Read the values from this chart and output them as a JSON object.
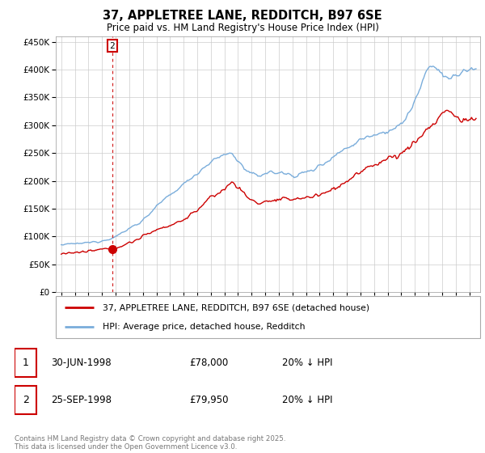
{
  "title": "37, APPLETREE LANE, REDDITCH, B97 6SE",
  "subtitle": "Price paid vs. HM Land Registry's House Price Index (HPI)",
  "ylim": [
    0,
    460000
  ],
  "yticks": [
    0,
    50000,
    100000,
    150000,
    200000,
    250000,
    300000,
    350000,
    400000,
    450000
  ],
  "line1_color": "#cc0000",
  "line2_color": "#7aaddb",
  "legend_line1": "37, APPLETREE LANE, REDDITCH, B97 6SE (detached house)",
  "legend_line2": "HPI: Average price, detached house, Redditch",
  "annotation1_label": "1",
  "annotation1_date": "30-JUN-1998",
  "annotation1_price": "£78,000",
  "annotation1_hpi": "20% ↓ HPI",
  "annotation2_label": "2",
  "annotation2_date": "25-SEP-1998",
  "annotation2_price": "£79,950",
  "annotation2_hpi": "20% ↓ HPI",
  "footer": "Contains HM Land Registry data © Crown copyright and database right 2025.\nThis data is licensed under the Open Government Licence v3.0.",
  "bg_color": "#ffffff",
  "plot_bg_color": "#ffffff",
  "grid_color": "#cccccc",
  "vline_x": 1998.75
}
